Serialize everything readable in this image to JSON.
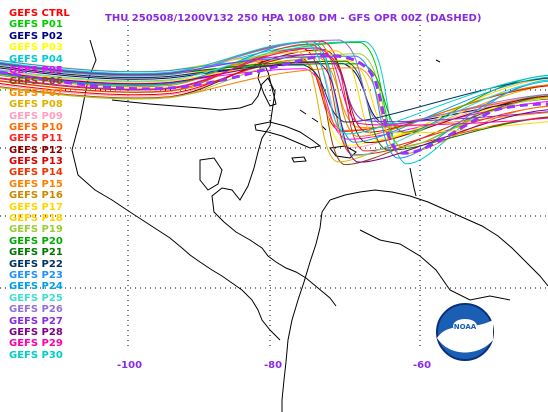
{
  "title": "THU 250508/1200V132  250 HPA 1080 DM - GFS OPR 00Z (DASHED)",
  "members": [
    {
      "label": "GEFS CTRL",
      "color": "#ff0000"
    },
    {
      "label": "GEFS P01",
      "color": "#00cc00"
    },
    {
      "label": "GEFS P02",
      "color": "#000080"
    },
    {
      "label": "GEFS P03",
      "color": "#ffff00"
    },
    {
      "label": "GEFS P04",
      "color": "#00cccc"
    },
    {
      "label": "GEFS P05",
      "color": "#ff00ff"
    },
    {
      "label": "GEFS P06",
      "color": "#8b4513"
    },
    {
      "label": "GEFS P07",
      "color": "#ff8c00"
    },
    {
      "label": "GEFS P08",
      "color": "#e0b000"
    },
    {
      "label": "GEFS P09",
      "color": "#ffa0c0"
    },
    {
      "label": "GEFS P10",
      "color": "#ff6a00"
    },
    {
      "label": "GEFS P11",
      "color": "#ff2020"
    },
    {
      "label": "GEFS P12",
      "color": "#8b0000"
    },
    {
      "label": "GEFS P13",
      "color": "#dd0000"
    },
    {
      "label": "GEFS P14",
      "color": "#ee3300"
    },
    {
      "label": "GEFS P15",
      "color": "#ff7f00"
    },
    {
      "label": "GEFS P16",
      "color": "#cc8800"
    },
    {
      "label": "GEFS P17",
      "color": "#ffd700"
    },
    {
      "label": "GEFS P18",
      "color": "#ffd000"
    },
    {
      "label": "GEFS P19",
      "color": "#9acd32"
    },
    {
      "label": "GEFS P20",
      "color": "#00aa00"
    },
    {
      "label": "GEFS P21",
      "color": "#007700"
    },
    {
      "label": "GEFS P22",
      "color": "#003366"
    },
    {
      "label": "GEFS P23",
      "color": "#1e90ff"
    },
    {
      "label": "GEFS P24",
      "color": "#00a0e0"
    },
    {
      "label": "GEFS P25",
      "color": "#40e0d0"
    },
    {
      "label": "GEFS P26",
      "color": "#9370db"
    },
    {
      "label": "GEFS P27",
      "color": "#8a2be2"
    },
    {
      "label": "GEFS P28",
      "color": "#800080"
    },
    {
      "label": "GEFS P29",
      "color": "#ff00aa"
    },
    {
      "label": "GEFS P30",
      "color": "#00cccc"
    }
  ],
  "lon_labels": [
    "-100",
    "-80",
    "-60"
  ],
  "colors": {
    "title": "#8a2be2",
    "opr": "#9933ff",
    "land": "#000000",
    "background": "#ffffff"
  },
  "logo_text": "NOAA"
}
